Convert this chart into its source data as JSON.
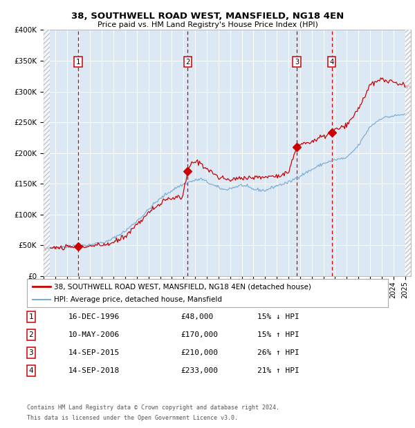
{
  "title1": "38, SOUTHWELL ROAD WEST, MANSFIELD, NG18 4EN",
  "title2": "Price paid vs. HM Land Registry's House Price Index (HPI)",
  "ylim": [
    0,
    400000
  ],
  "yticks": [
    0,
    50000,
    100000,
    150000,
    200000,
    250000,
    300000,
    350000,
    400000
  ],
  "xlim_start": 1994.0,
  "xlim_end": 2025.5,
  "sale_color": "#cc0000",
  "hpi_color": "#7aaed6",
  "bg_color": "#dce9f5",
  "sale_dates": [
    1996.96,
    2006.36,
    2015.71,
    2018.71
  ],
  "sale_prices": [
    48000,
    170000,
    210000,
    233000
  ],
  "transaction_labels": [
    "1",
    "2",
    "3",
    "4"
  ],
  "legend_sale": "38, SOUTHWELL ROAD WEST, MANSFIELD, NG18 4EN (detached house)",
  "legend_hpi": "HPI: Average price, detached house, Mansfield",
  "table_entries": [
    {
      "num": "1",
      "date": "16-DEC-1996",
      "price": "£48,000",
      "hpi": "15% ↓ HPI"
    },
    {
      "num": "2",
      "date": "10-MAY-2006",
      "price": "£170,000",
      "hpi": "15% ↑ HPI"
    },
    {
      "num": "3",
      "date": "14-SEP-2015",
      "price": "£210,000",
      "hpi": "26% ↑ HPI"
    },
    {
      "num": "4",
      "date": "14-SEP-2018",
      "price": "£233,000",
      "hpi": "21% ↑ HPI"
    }
  ],
  "footnote1": "Contains HM Land Registry data © Crown copyright and database right 2024.",
  "footnote2": "This data is licensed under the Open Government Licence v3.0."
}
